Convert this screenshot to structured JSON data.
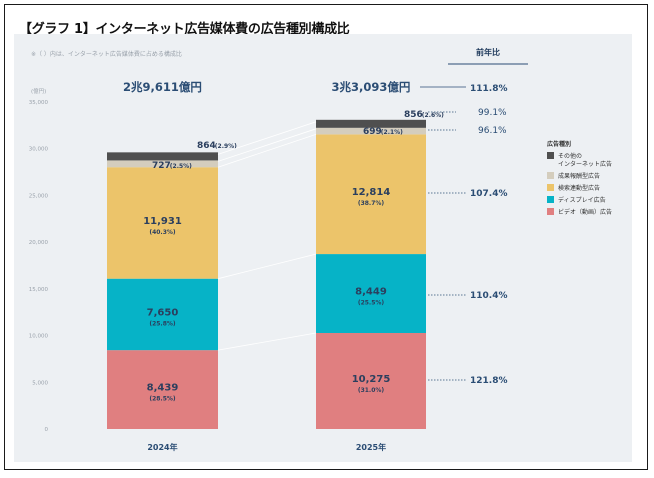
{
  "title": "【グラフ 1】インターネット広告媒体費の広告種別構成比",
  "note": "※（ ）内は、インターネット広告媒体費に占める構成比",
  "yoy_header": "前年比",
  "colors": {
    "video": "#e07f80",
    "display": "#06b3c7",
    "search": "#ecc46a",
    "performance": "#d4cdbd",
    "other": "#4f4f4f",
    "label": "#2b4d74",
    "panel": "#edf0f3"
  },
  "chart_data": {
    "type": "bar",
    "stacked": true,
    "categories": [
      "2024年",
      "2025年"
    ],
    "ylabel": "(億円)",
    "ylim": [
      0,
      35000
    ],
    "yticks": [
      0,
      5000,
      10000,
      15000,
      20000,
      25000,
      30000,
      35000
    ],
    "ytick_labels": [
      "0",
      "5,000",
      "10,000",
      "15,000",
      "20,000",
      "25,000",
      "30,000",
      "35,000"
    ],
    "totals": [
      "2兆9,611億円",
      "3兆3,093億円"
    ],
    "series": [
      {
        "name": "ビデオ（動画）広告",
        "color": "#e07f80",
        "values": [
          8439,
          10275
        ],
        "value_labels": [
          "8,439",
          "10,275"
        ],
        "share_labels": [
          "(28.5%)",
          "(31.0%)"
        ],
        "yoy": "121.8%"
      },
      {
        "name": "ディスプレイ広告",
        "color": "#06b3c7",
        "values": [
          7650,
          8449
        ],
        "value_labels": [
          "7,650",
          "8,449"
        ],
        "share_labels": [
          "(25.8%)",
          "(25.5%)"
        ],
        "yoy": "110.4%"
      },
      {
        "name": "検索連動型広告",
        "color": "#ecc46a",
        "values": [
          11931,
          12814
        ],
        "value_labels": [
          "11,931",
          "12,814"
        ],
        "share_labels": [
          "(40.3%)",
          "(38.7%)"
        ],
        "yoy": "107.4%"
      },
      {
        "name": "成果報酬型広告",
        "color": "#d4cdbd",
        "values": [
          727,
          699
        ],
        "value_labels": [
          "727",
          "699"
        ],
        "share_labels": [
          "(2.5%)",
          "(2.1%)"
        ],
        "yoy": "96.1%"
      },
      {
        "name": "その他のインターネット広告",
        "color": "#4f4f4f",
        "values": [
          864,
          856
        ],
        "value_labels": [
          "864",
          "856"
        ],
        "share_labels": [
          "(2.9%)",
          "(2.6%)"
        ],
        "yoy": "99.1%"
      }
    ],
    "total_yoy": "111.8%",
    "legend": {
      "title": "広告種別",
      "position": "right",
      "items": [
        {
          "lines": [
            "その他の",
            "インターネット広告"
          ],
          "color": "#4f4f4f"
        },
        {
          "lines": [
            "成果報酬型広告"
          ],
          "color": "#d4cdbd"
        },
        {
          "lines": [
            "検索連動型広告"
          ],
          "color": "#ecc46a"
        },
        {
          "lines": [
            "ディスプレイ広告"
          ],
          "color": "#06b3c7"
        },
        {
          "lines": [
            "ビデオ（動画）広告"
          ],
          "color": "#e07f80"
        }
      ]
    }
  }
}
